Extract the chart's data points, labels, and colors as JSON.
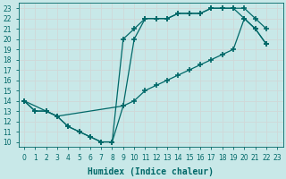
{
  "background_color": "#c8e8e8",
  "grid_color": "#d0d8d8",
  "line_color": "#006868",
  "xlabel": "Humidex (Indice chaleur)",
  "xlim": [
    -0.5,
    23.5
  ],
  "ylim": [
    9.5,
    23.5
  ],
  "xticks": [
    0,
    1,
    2,
    3,
    4,
    5,
    6,
    7,
    8,
    9,
    10,
    11,
    12,
    13,
    14,
    15,
    16,
    17,
    18,
    19,
    20,
    21,
    22,
    23
  ],
  "yticks": [
    10,
    11,
    12,
    13,
    14,
    15,
    16,
    17,
    18,
    19,
    20,
    21,
    22,
    23
  ],
  "line1_x": [
    0,
    1,
    2,
    3,
    4,
    5,
    6,
    7,
    8,
    9,
    10,
    11,
    12,
    13,
    14,
    15,
    16,
    17,
    18,
    19,
    20,
    21,
    22
  ],
  "line1_y": [
    14,
    13,
    13,
    12.5,
    11.5,
    11,
    10.5,
    10,
    10,
    13.5,
    20,
    22,
    22,
    22,
    22.5,
    22.5,
    22.5,
    23,
    23,
    23,
    23,
    22,
    21
  ],
  "line2_x": [
    0,
    1,
    2,
    3,
    4,
    5,
    6,
    7,
    8,
    9,
    10,
    11,
    12,
    13,
    14,
    15,
    16,
    17,
    18,
    19,
    20,
    21,
    22
  ],
  "line2_y": [
    14,
    13,
    13,
    12.5,
    11.5,
    11,
    10.5,
    10,
    10,
    20,
    21,
    22,
    22,
    22,
    22.5,
    22.5,
    22.5,
    23,
    23,
    23,
    22,
    21,
    19.5
  ],
  "line3_x": [
    0,
    2,
    3,
    9,
    10,
    11,
    12,
    13,
    14,
    15,
    16,
    17,
    18,
    19,
    20,
    21,
    22
  ],
  "line3_y": [
    14,
    13,
    12.5,
    13.5,
    14,
    15,
    15.5,
    16,
    16.5,
    17,
    17.5,
    18,
    18.5,
    19,
    22,
    21,
    19.5
  ],
  "marker": "+",
  "markersize": 4,
  "markeredgewidth": 1.2,
  "linewidth": 0.9,
  "title_fontsize": 7,
  "xlabel_fontsize": 7,
  "tick_fontsize": 5.5
}
